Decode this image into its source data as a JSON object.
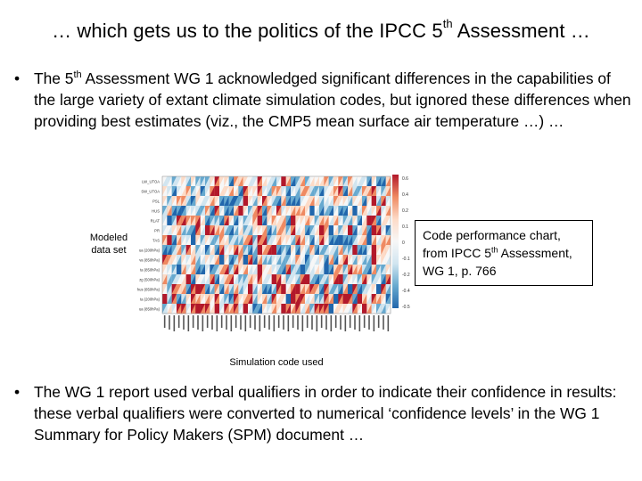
{
  "slide": {
    "title_a": "… which gets us to the politics of the IPCC 5",
    "title_sup": "th",
    "title_b": " Assessment …",
    "bullet_char": "•",
    "bullet1": {
      "a": "The 5",
      "sup": "th",
      "b": " Assessment WG 1 acknowledged significant differences in the capabilities of the large variety of extant climate simulation codes, but ignored these differences when providing best estimates (viz., the CMP5 mean surface air temperature …) …"
    },
    "bullet2": "The WG 1 report used verbal qualifiers in order to indicate their confidence in results: these verbal qualifiers were converted to numerical ‘confidence levels’ in the WG 1 Summary for Policy Makers (SPM) document …",
    "modeled_label": "Modeled data set",
    "simulation_label": "Simulation code used",
    "callout": {
      "a": "Code performance chart, from IPCC 5",
      "sup": "th",
      "b": " Assessment, WG 1, p. 766"
    }
  },
  "chart_data": {
    "type": "heatmap",
    "rows": [
      "LW_UTOA",
      "SW_UTOA",
      "PSL",
      "HUS",
      "RLAT",
      "PR",
      "TAS",
      "ua (200hPa)",
      "va (850hPa)",
      "ta (850hPa)",
      "zg (500hPa)",
      "hus (850hPa)",
      "ta (200hPa)",
      "ua (850hPa)"
    ],
    "colorbar_ticks": [
      "0.6",
      "0.4",
      "0.2",
      "0.1",
      "0",
      "-0.1",
      "-0.2",
      "-0.4",
      "-0.5"
    ],
    "n_models": 48,
    "colors": {
      "strong_pos": "#b2182b",
      "pos": "#ef8a62",
      "weak_pos": "#fddbc7",
      "neutral": "#f7f7f7",
      "weak_neg": "#d1e5f0",
      "neg": "#67a9cf",
      "strong_neg": "#2166ac"
    }
  }
}
